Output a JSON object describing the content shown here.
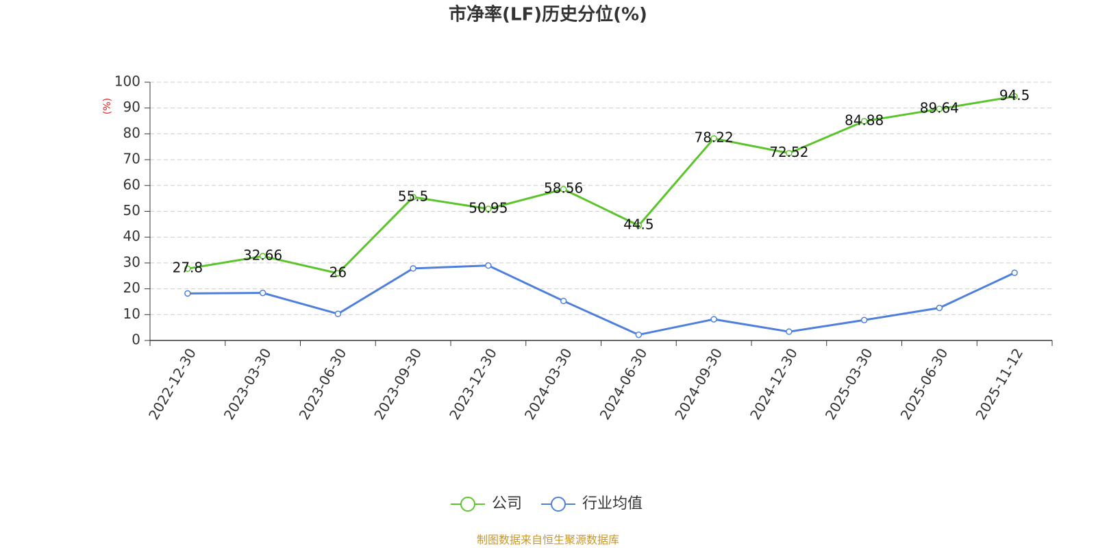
{
  "chart_data": {
    "type": "line",
    "title": "市净率(LF)历史分位(%)",
    "y_label": "(%)",
    "source": "制图数据来自恒生聚源数据库",
    "categories": [
      "2022-12-30",
      "2023-03-30",
      "2023-06-30",
      "2023-09-30",
      "2023-12-30",
      "2024-03-30",
      "2024-06-30",
      "2024-09-30",
      "2024-12-30",
      "2025-03-30",
      "2025-06-30",
      "2025-11-12"
    ],
    "series": [
      {
        "name": "公司",
        "color": "#5cc42b",
        "labels": true,
        "values": [
          27.8,
          32.66,
          26,
          55.5,
          50.95,
          58.56,
          44.5,
          78.22,
          72.52,
          84.88,
          89.64,
          94.5
        ]
      },
      {
        "name": "行业均值",
        "color": "#4e7fdc",
        "labels": false,
        "values": [
          18.2,
          18.4,
          10.3,
          27.9,
          29.0,
          15.3,
          2.2,
          8.2,
          3.4,
          7.9,
          12.6,
          26.2
        ]
      }
    ],
    "ylim": [
      0,
      100
    ],
    "yticks": [
      0,
      10,
      20,
      30,
      40,
      50,
      60,
      70,
      80,
      90,
      100
    ],
    "grid": true,
    "legend": "bottom"
  }
}
